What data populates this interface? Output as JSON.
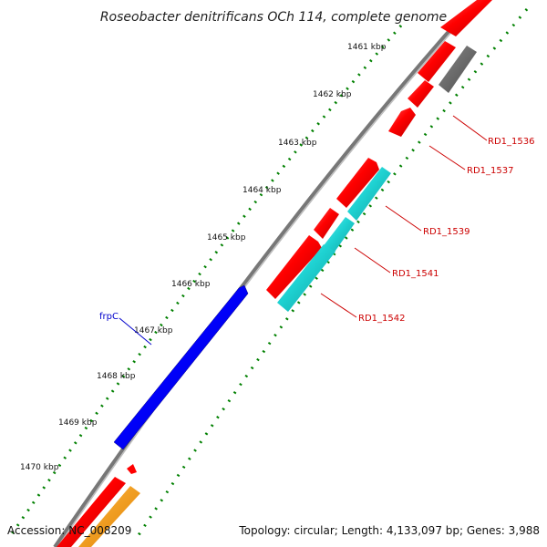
{
  "title": "Roseobacter denitrificans OCh 114, complete genome",
  "accession": "Accession: NC_008209",
  "summary": "Topology: circular; Length: 4,133,097 bp; Genes: 3,988",
  "kbp_labels": [
    "1461 kbp",
    "1462 kbp",
    "1463 kbp",
    "1464 kbp",
    "1465 kbp",
    "1466 kbp",
    "1467 kbp",
    "1468 kbp",
    "1469 kbp",
    "1470 kbp"
  ],
  "gene_labels": {
    "frpC": "frpC",
    "rd1_1536": "RD1_1536",
    "rd1_1537": "RD1_1537",
    "rd1_1539": "RD1_1539",
    "rd1_1541": "RD1_1541",
    "rd1_1542": "RD1_1542"
  },
  "colors": {
    "backbone": "#808080",
    "forward_gene": "#ff0000",
    "reverse_gene": "#ff0000",
    "frpC": "#0000ff",
    "cyan_gene": "#1ed2d2",
    "gray_gene": "#666666",
    "orange_gene": "#ff9900",
    "ticks": "#008000",
    "label_red": "#cc0000",
    "label_blue": "#0000cc"
  }
}
